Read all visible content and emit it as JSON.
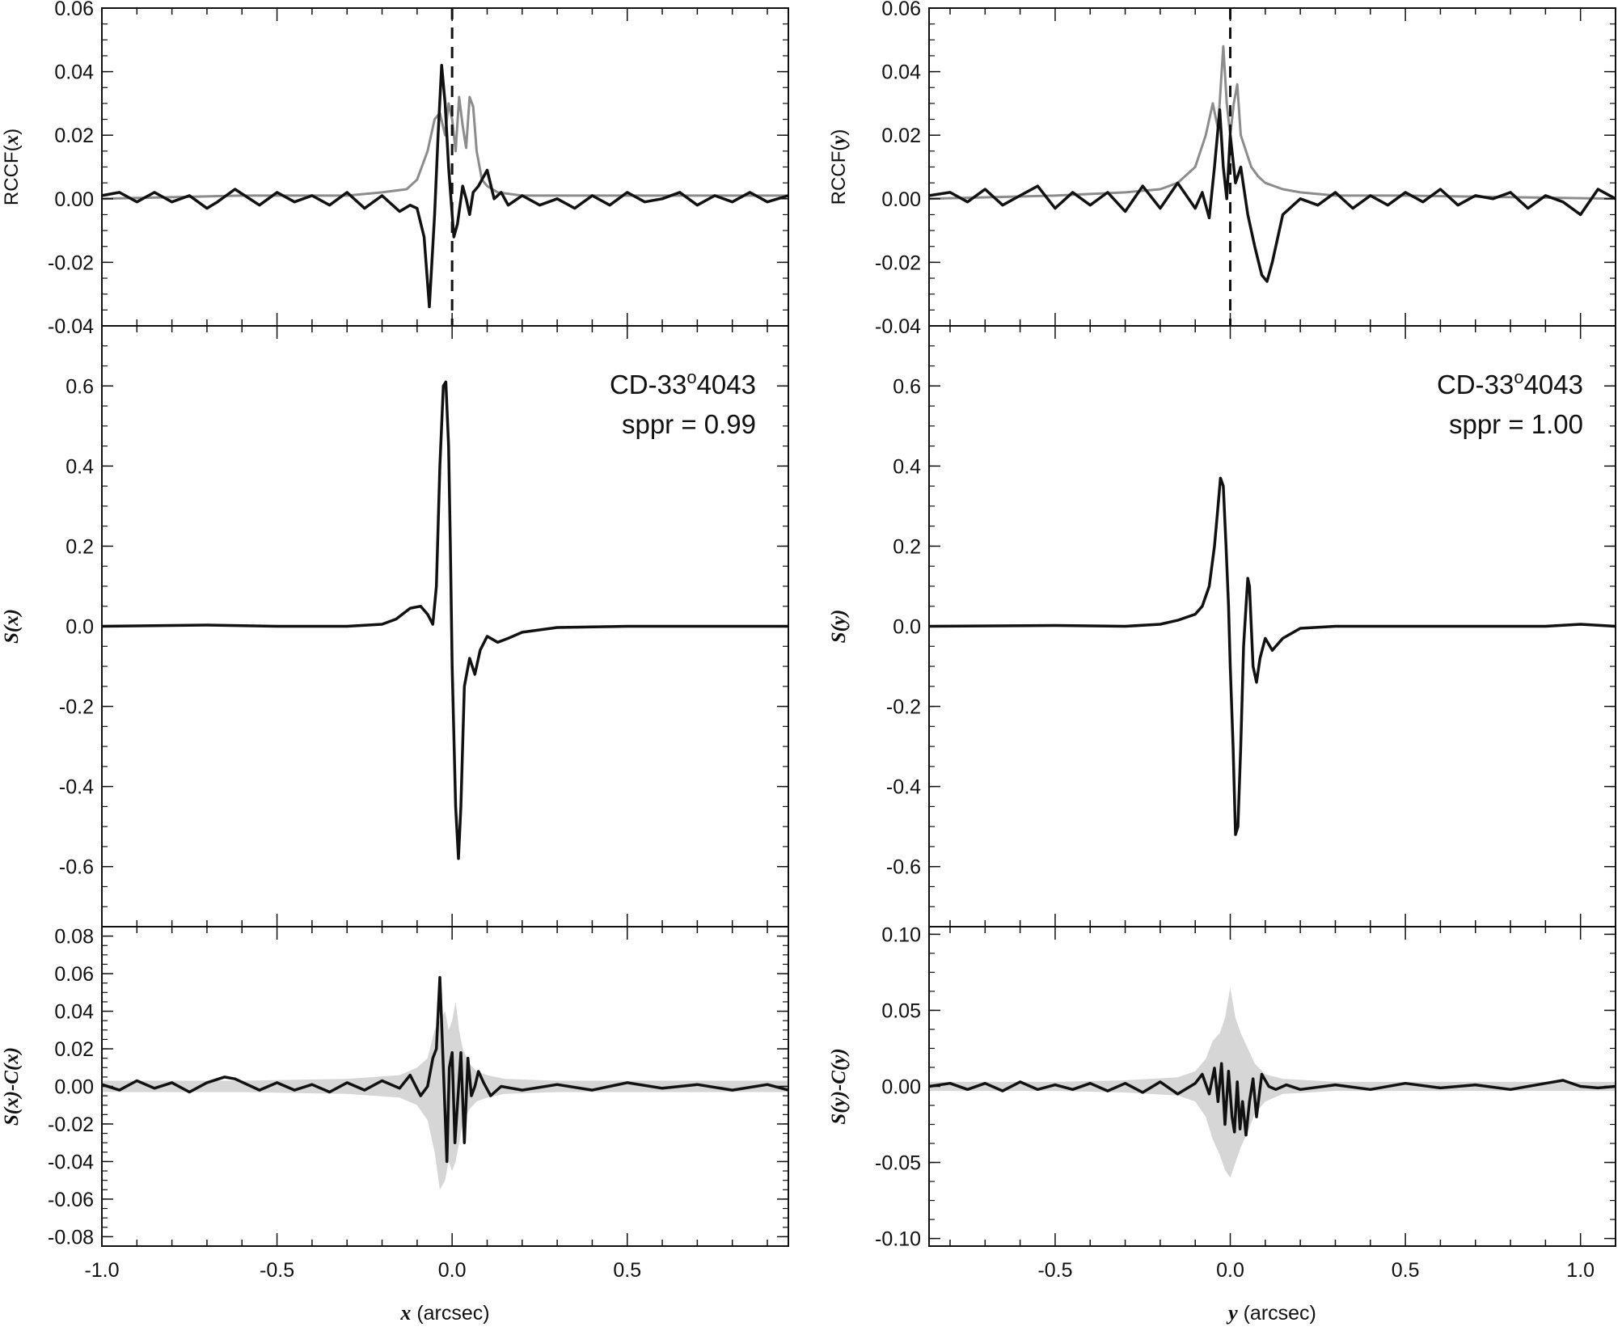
{
  "chart_data": [
    {
      "type": "line",
      "panel": "top-left",
      "ylabel": "RCCF(x)",
      "ylim": [
        -0.04,
        0.06
      ],
      "xlim": [
        -1.0,
        0.96
      ],
      "yticks": [
        "-0.04",
        "-0.02",
        "0.00",
        "0.02",
        "0.04",
        "0.06"
      ],
      "vline_x": 0.0,
      "series": [
        {
          "color": "#8c8c8c",
          "x": [
            -1.0,
            -0.6,
            -0.3,
            -0.2,
            -0.13,
            -0.1,
            -0.07,
            -0.05,
            -0.035,
            -0.02,
            -0.01,
            0.0,
            0.01,
            0.02,
            0.03,
            0.04,
            0.05,
            0.06,
            0.07,
            0.085,
            0.1,
            0.13,
            0.2,
            0.5,
            0.96
          ],
          "y": [
            0.0,
            0.001,
            0.001,
            0.002,
            0.003,
            0.006,
            0.015,
            0.025,
            0.027,
            0.02,
            0.03,
            0.025,
            0.015,
            0.032,
            0.023,
            0.016,
            0.032,
            0.029,
            0.015,
            0.006,
            0.004,
            0.002,
            0.001,
            0.001,
            0.001
          ]
        },
        {
          "color": "#111111",
          "x": [
            -1.0,
            -0.95,
            -0.9,
            -0.85,
            -0.8,
            -0.75,
            -0.7,
            -0.67,
            -0.62,
            -0.55,
            -0.5,
            -0.45,
            -0.4,
            -0.35,
            -0.3,
            -0.25,
            -0.2,
            -0.15,
            -0.12,
            -0.1,
            -0.08,
            -0.065,
            -0.05,
            -0.04,
            -0.03,
            -0.02,
            -0.01,
            0.0,
            0.005,
            0.015,
            0.03,
            0.04,
            0.05,
            0.06,
            0.075,
            0.1,
            0.12,
            0.14,
            0.16,
            0.2,
            0.25,
            0.3,
            0.35,
            0.4,
            0.45,
            0.5,
            0.55,
            0.6,
            0.65,
            0.7,
            0.75,
            0.8,
            0.85,
            0.9,
            0.96
          ],
          "y": [
            0.001,
            0.002,
            -0.001,
            0.002,
            -0.001,
            0.001,
            -0.003,
            -0.001,
            0.003,
            -0.002,
            0.002,
            -0.001,
            0.001,
            -0.002,
            0.002,
            -0.003,
            0.001,
            -0.004,
            -0.002,
            -0.003,
            -0.012,
            -0.034,
            -0.005,
            0.02,
            0.042,
            0.03,
            0.01,
            -0.005,
            -0.012,
            -0.008,
            0.004,
            0.0,
            -0.005,
            0.002,
            0.004,
            0.009,
            0.0,
            0.002,
            -0.002,
            0.001,
            -0.002,
            0.0,
            -0.003,
            0.001,
            -0.002,
            0.002,
            -0.001,
            0.0,
            0.002,
            -0.002,
            0.001,
            -0.001,
            0.002,
            -0.001,
            0.001
          ]
        }
      ]
    },
    {
      "type": "line",
      "panel": "middle-left",
      "ylabel": "S(x)",
      "ylim": [
        -0.75,
        0.75
      ],
      "xlim": [
        -1.0,
        0.96
      ],
      "yticks": [
        "-0.6",
        "-0.4",
        "-0.2",
        "0.0",
        "0.2",
        "0.4",
        "0.6"
      ],
      "annotation": {
        "star": "CD-33",
        "degree": "o",
        "star_num": "4043",
        "sppr": "sppr = 0.99"
      },
      "series": [
        {
          "color": "#111111",
          "x": [
            -1.0,
            -0.7,
            -0.5,
            -0.3,
            -0.2,
            -0.16,
            -0.12,
            -0.09,
            -0.07,
            -0.055,
            -0.045,
            -0.035,
            -0.025,
            -0.018,
            -0.01,
            -0.005,
            0.0,
            0.01,
            0.018,
            0.025,
            0.035,
            0.05,
            0.065,
            0.08,
            0.1,
            0.13,
            0.16,
            0.2,
            0.3,
            0.5,
            0.96
          ],
          "y": [
            0.0,
            0.003,
            0.0,
            0.0,
            0.005,
            0.018,
            0.045,
            0.05,
            0.03,
            0.005,
            0.1,
            0.4,
            0.6,
            0.61,
            0.45,
            0.2,
            -0.1,
            -0.45,
            -0.58,
            -0.45,
            -0.15,
            -0.08,
            -0.12,
            -0.06,
            -0.025,
            -0.04,
            -0.03,
            -0.015,
            -0.003,
            0.0,
            0.0
          ]
        }
      ]
    },
    {
      "type": "line",
      "panel": "bottom-left",
      "ylabel": "S(x)-C(x)",
      "ylim": [
        -0.085,
        0.085
      ],
      "xlim": [
        -1.0,
        0.96
      ],
      "xticks": [
        "-1.0",
        "-0.5",
        "0.0",
        "0.5"
      ],
      "xlabel": "x (arcsec)",
      "yticks": [
        "-0.08",
        "-0.06",
        "-0.04",
        "-0.02",
        "0.00",
        "0.02",
        "0.04",
        "0.06",
        "0.08"
      ],
      "band": {
        "color": "#d6d6d6",
        "x": [
          -1.0,
          -0.6,
          -0.3,
          -0.15,
          -0.1,
          -0.07,
          -0.05,
          -0.035,
          -0.02,
          -0.01,
          0.0,
          0.01,
          0.02,
          0.03,
          0.05,
          0.07,
          0.1,
          0.15,
          0.3,
          0.6,
          0.96
        ],
        "hi": [
          0.003,
          0.003,
          0.004,
          0.006,
          0.01,
          0.015,
          0.03,
          0.035,
          0.04,
          0.03,
          0.035,
          0.045,
          0.03,
          0.02,
          0.012,
          0.008,
          0.006,
          0.004,
          0.003,
          0.003,
          0.003
        ],
        "lo": [
          -0.003,
          -0.003,
          -0.004,
          -0.006,
          -0.01,
          -0.018,
          -0.035,
          -0.055,
          -0.05,
          -0.04,
          -0.045,
          -0.04,
          -0.03,
          -0.02,
          -0.012,
          -0.008,
          -0.006,
          -0.004,
          -0.003,
          -0.003,
          -0.003
        ]
      },
      "series": [
        {
          "color": "#111111",
          "x": [
            -1.0,
            -0.95,
            -0.9,
            -0.85,
            -0.8,
            -0.75,
            -0.7,
            -0.65,
            -0.62,
            -0.55,
            -0.5,
            -0.45,
            -0.4,
            -0.35,
            -0.3,
            -0.25,
            -0.2,
            -0.15,
            -0.12,
            -0.09,
            -0.07,
            -0.055,
            -0.045,
            -0.035,
            -0.025,
            -0.015,
            -0.008,
            0.0,
            0.008,
            0.015,
            0.025,
            0.035,
            0.045,
            0.055,
            0.065,
            0.075,
            0.09,
            0.11,
            0.14,
            0.2,
            0.3,
            0.4,
            0.5,
            0.6,
            0.7,
            0.8,
            0.9,
            0.96
          ],
          "y": [
            0.001,
            -0.002,
            0.003,
            -0.001,
            0.002,
            -0.003,
            0.002,
            0.005,
            0.004,
            -0.002,
            0.002,
            -0.002,
            0.001,
            -0.003,
            0.002,
            -0.002,
            0.003,
            -0.001,
            0.006,
            -0.005,
            0.0,
            0.015,
            0.02,
            0.058,
            0.01,
            -0.04,
            0.01,
            0.018,
            -0.03,
            -0.01,
            0.018,
            -0.03,
            0.015,
            -0.005,
            0.0,
            0.008,
            0.002,
            -0.005,
            0.0,
            -0.002,
            0.001,
            -0.002,
            0.002,
            -0.001,
            0.001,
            -0.002,
            0.001,
            -0.002
          ]
        }
      ]
    },
    {
      "type": "line",
      "panel": "top-right",
      "ylabel": "RCCF(y)",
      "ylim": [
        -0.04,
        0.06
      ],
      "xlim": [
        -0.86,
        1.1
      ],
      "yticks": [
        "-0.04",
        "-0.02",
        "0.00",
        "0.02",
        "0.04",
        "0.06"
      ],
      "vline_x": 0.0,
      "series": [
        {
          "color": "#8c8c8c",
          "x": [
            -0.86,
            -0.5,
            -0.3,
            -0.2,
            -0.15,
            -0.1,
            -0.07,
            -0.05,
            -0.035,
            -0.02,
            -0.01,
            0.0,
            0.01,
            0.02,
            0.03,
            0.045,
            0.06,
            0.08,
            0.1,
            0.15,
            0.2,
            0.3,
            0.5,
            1.1
          ],
          "y": [
            0.0,
            0.001,
            0.002,
            0.003,
            0.005,
            0.01,
            0.02,
            0.03,
            0.022,
            0.048,
            0.03,
            0.02,
            0.03,
            0.036,
            0.02,
            0.015,
            0.01,
            0.007,
            0.005,
            0.003,
            0.002,
            0.001,
            0.001,
            0.0
          ]
        },
        {
          "color": "#111111",
          "x": [
            -0.86,
            -0.8,
            -0.75,
            -0.7,
            -0.65,
            -0.6,
            -0.55,
            -0.5,
            -0.45,
            -0.4,
            -0.35,
            -0.3,
            -0.25,
            -0.2,
            -0.15,
            -0.1,
            -0.08,
            -0.06,
            -0.045,
            -0.03,
            -0.02,
            -0.01,
            0.0,
            0.015,
            0.03,
            0.05,
            0.07,
            0.09,
            0.105,
            0.12,
            0.15,
            0.2,
            0.25,
            0.3,
            0.35,
            0.4,
            0.45,
            0.5,
            0.55,
            0.6,
            0.65,
            0.7,
            0.75,
            0.8,
            0.85,
            0.9,
            0.95,
            1.0,
            1.05,
            1.1
          ],
          "y": [
            0.001,
            0.002,
            -0.001,
            0.003,
            -0.002,
            0.001,
            0.004,
            -0.003,
            0.002,
            -0.002,
            0.002,
            -0.004,
            0.004,
            -0.003,
            0.005,
            -0.003,
            0.002,
            -0.006,
            0.01,
            0.028,
            0.01,
            0.0,
            0.02,
            0.005,
            0.01,
            -0.005,
            -0.015,
            -0.024,
            -0.026,
            -0.02,
            -0.005,
            0.0,
            -0.002,
            0.002,
            -0.003,
            0.001,
            -0.002,
            0.002,
            -0.001,
            0.003,
            -0.002,
            0.001,
            0.0,
            0.002,
            -0.003,
            0.001,
            -0.001,
            -0.005,
            0.003,
            0.0
          ]
        }
      ]
    },
    {
      "type": "line",
      "panel": "middle-right",
      "ylabel": "S(y)",
      "ylim": [
        -0.75,
        0.75
      ],
      "xlim": [
        -0.86,
        1.1
      ],
      "yticks": [
        "-0.6",
        "-0.4",
        "-0.2",
        "0.0",
        "0.2",
        "0.4",
        "0.6"
      ],
      "annotation": {
        "star": "CD-33",
        "degree": "o",
        "star_num": "4043",
        "sppr": "sppr = 1.00"
      },
      "series": [
        {
          "color": "#111111",
          "x": [
            -0.86,
            -0.5,
            -0.3,
            -0.2,
            -0.15,
            -0.1,
            -0.08,
            -0.06,
            -0.045,
            -0.035,
            -0.028,
            -0.02,
            -0.012,
            -0.005,
            0.0,
            0.008,
            0.015,
            0.022,
            0.03,
            0.038,
            0.045,
            0.05,
            0.055,
            0.06,
            0.065,
            0.075,
            0.085,
            0.1,
            0.12,
            0.15,
            0.2,
            0.3,
            0.5,
            0.9,
            1.0,
            1.1
          ],
          "y": [
            0.0,
            0.002,
            0.0,
            0.005,
            0.015,
            0.03,
            0.05,
            0.1,
            0.2,
            0.3,
            0.37,
            0.35,
            0.2,
            0.05,
            -0.1,
            -0.3,
            -0.52,
            -0.5,
            -0.3,
            -0.05,
            0.05,
            0.12,
            0.1,
            0.0,
            -0.1,
            -0.14,
            -0.08,
            -0.03,
            -0.06,
            -0.03,
            -0.005,
            0.0,
            0.0,
            0.0,
            0.005,
            0.0
          ]
        }
      ]
    },
    {
      "type": "line",
      "panel": "bottom-right",
      "ylabel": "S(y)-C(y)",
      "ylim": [
        -0.105,
        0.105
      ],
      "xlim": [
        -0.86,
        1.1
      ],
      "xticks": [
        "-0.5",
        "0.0",
        "0.5",
        "1.0"
      ],
      "xlabel": "y (arcsec)",
      "yticks": [
        "-0.10",
        "-0.05",
        "0.00",
        "0.05",
        "0.10"
      ],
      "band": {
        "color": "#d6d6d6",
        "x": [
          -0.86,
          -0.5,
          -0.3,
          -0.15,
          -0.1,
          -0.07,
          -0.05,
          -0.03,
          -0.015,
          0.0,
          0.015,
          0.03,
          0.05,
          0.07,
          0.1,
          0.15,
          0.3,
          0.6,
          1.1
        ],
        "hi": [
          0.003,
          0.003,
          0.004,
          0.006,
          0.01,
          0.018,
          0.03,
          0.035,
          0.045,
          0.065,
          0.045,
          0.035,
          0.025,
          0.015,
          0.008,
          0.005,
          0.003,
          0.003,
          0.003
        ],
        "lo": [
          -0.003,
          -0.003,
          -0.004,
          -0.006,
          -0.01,
          -0.02,
          -0.035,
          -0.045,
          -0.055,
          -0.06,
          -0.05,
          -0.04,
          -0.03,
          -0.018,
          -0.01,
          -0.005,
          -0.003,
          -0.003,
          -0.003
        ]
      },
      "series": [
        {
          "color": "#111111",
          "x": [
            -0.86,
            -0.8,
            -0.75,
            -0.7,
            -0.65,
            -0.6,
            -0.55,
            -0.5,
            -0.45,
            -0.4,
            -0.35,
            -0.3,
            -0.25,
            -0.2,
            -0.15,
            -0.1,
            -0.08,
            -0.06,
            -0.045,
            -0.035,
            -0.025,
            -0.015,
            -0.005,
            0.005,
            0.012,
            0.02,
            0.028,
            0.035,
            0.045,
            0.055,
            0.065,
            0.075,
            0.09,
            0.11,
            0.13,
            0.16,
            0.2,
            0.3,
            0.4,
            0.5,
            0.6,
            0.7,
            0.8,
            0.9,
            0.95,
            1.0,
            1.05,
            1.1
          ],
          "y": [
            0.0,
            0.002,
            -0.002,
            0.002,
            -0.003,
            0.003,
            -0.002,
            0.001,
            -0.002,
            0.002,
            -0.003,
            0.002,
            -0.004,
            0.003,
            -0.005,
            0.002,
            0.008,
            -0.005,
            0.012,
            -0.01,
            0.015,
            -0.025,
            0.01,
            -0.02,
            -0.03,
            0.003,
            -0.028,
            -0.01,
            -0.032,
            -0.01,
            0.005,
            -0.02,
            0.008,
            0.0,
            -0.002,
            0.001,
            -0.002,
            0.001,
            -0.002,
            0.002,
            -0.001,
            0.001,
            -0.002,
            0.002,
            0.004,
            0.0,
            -0.001,
            0.0
          ]
        }
      ]
    }
  ]
}
